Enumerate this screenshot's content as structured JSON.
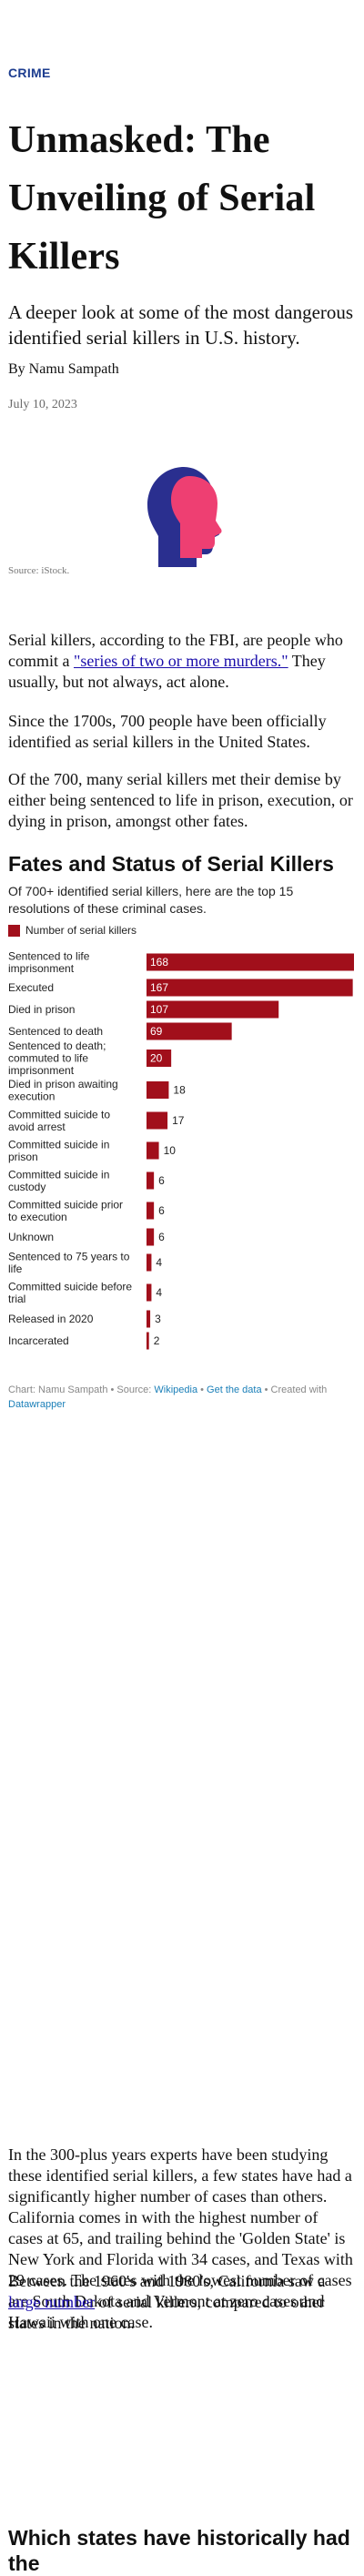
{
  "article": {
    "kicker": "CRIME",
    "title": "Unmasked: The Unveiling of Serial Killers",
    "subtitle": "A deeper look at some of the most dangerous identified serial killers in U.S. history.",
    "byline": "By Namu Sampath",
    "date": "July 10, 2023",
    "image_source": "Source: iStock.",
    "p1_before": "Serial killers, according to the FBI, are people who commit a ",
    "p1_link": "\"series of two or more murders.\"",
    "p1_after": " They usually, but not always, act alone.",
    "p2": "Since the 1700s, 700 people have been officially identified as serial killers in the United States.",
    "p3": "Of the 700, many serial killers met their demise by either being sentenced to life in prison, execution, or dying in prison, amongst other fates.",
    "p4": "In the 300-plus years experts have been studying these identified serial killers, a few states have had a significantly higher number of cases than others. California comes in with the highest number of cases at 65, and trailing behind the 'Golden State' is New York and Florida with 34 cases, and Texas with 29 cases. The states with the lowest number of cases are South Dakota and Vermont at zero cases and Hawaii with one case.",
    "p5_before": "Between the 1960's and 1980's, California saw a ",
    "p5_link": "large number",
    "p5_after": " of serial killers, compared to other states in the nation.",
    "next_heading": "Which states have historically had the"
  },
  "chart_section": {
    "title": "Fates and Status of Serial Killers",
    "description": "Of 700+ identified serial killers, here are the top 15 resolutions of these criminal cases.",
    "legend_label": "Number of serial killers",
    "credit_prefix": "Chart: Namu Sampath • Source: ",
    "credit_source": "Wikipedia",
    "credit_sep": " • ",
    "credit_data": "Get the data",
    "credit_created": " • Created with ",
    "credit_tool": "Datawrapper"
  },
  "colors": {
    "bar": "#a10f1b",
    "kicker": "#1d3d8f",
    "hero_dark": "#2a2f8f",
    "hero_pink": "#ee3f72"
  },
  "chart_data": {
    "type": "bar",
    "orientation": "horizontal",
    "categories": [
      "Sentenced to life imprisonment",
      "Executed",
      "Died in prison",
      "Sentenced to death",
      "Sentenced to death; commuted to life imprisonment",
      "Died in prison awaiting execution",
      "Committed suicide to avoid arrest",
      "Committed suicide in prison",
      "Committed suicide in custody",
      "Committed suicide prior to execution",
      "Unknown",
      "Sentenced to 75 years to life",
      "Committed suicide before trial",
      "Released in 2020",
      "Incarcerated"
    ],
    "series": [
      {
        "name": "Number of serial killers",
        "values": [
          168,
          167,
          107,
          69,
          20,
          18,
          17,
          10,
          6,
          6,
          6,
          4,
          4,
          3,
          2
        ]
      }
    ],
    "xlim": [
      0,
      168
    ],
    "value_labels": true
  }
}
